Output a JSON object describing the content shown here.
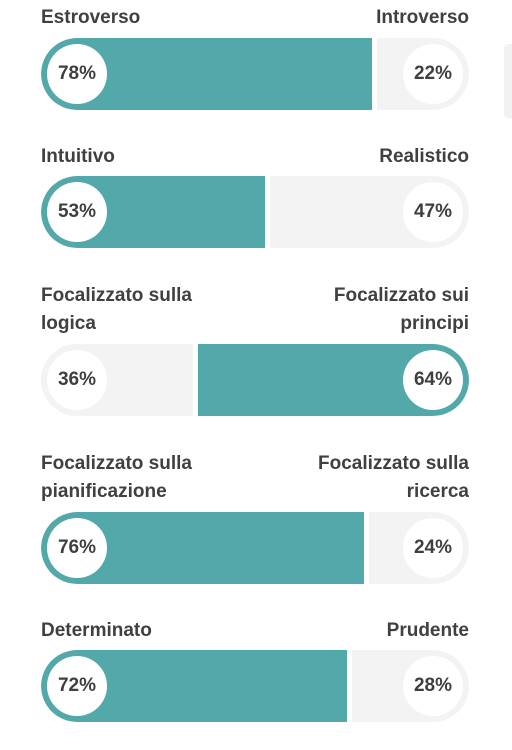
{
  "colors": {
    "accent": "#53a8aa",
    "track": "#f3f3f3",
    "text": "#3f3f3f"
  },
  "traits": [
    {
      "left_label": "Estroverso",
      "right_label": "Introverso",
      "left_pct": "78%",
      "right_pct": "22%",
      "left_value": 78,
      "dominant": "left"
    },
    {
      "left_label": "Intuitivo",
      "right_label": "Realistico",
      "left_pct": "53%",
      "right_pct": "47%",
      "left_value": 53,
      "dominant": "left"
    },
    {
      "left_label": "Focalizzato sulla logica",
      "right_label": "Focalizzato sui principi",
      "left_pct": "36%",
      "right_pct": "64%",
      "left_value": 36,
      "dominant": "right"
    },
    {
      "left_label": "Focalizzato sulla pianificazione",
      "right_label": "Focalizzato sulla ricerca",
      "left_pct": "76%",
      "right_pct": "24%",
      "left_value": 76,
      "dominant": "left"
    },
    {
      "left_label": "Determinato",
      "right_label": "Prudente",
      "left_pct": "72%",
      "right_pct": "28%",
      "left_value": 72,
      "dominant": "left"
    }
  ]
}
